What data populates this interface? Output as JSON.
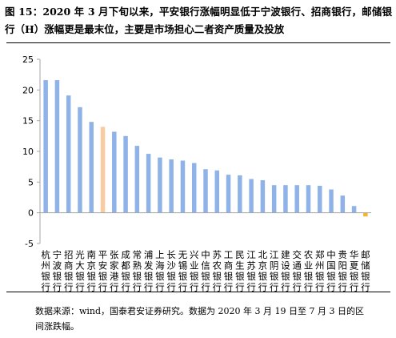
{
  "header": {
    "title": "图 15：2020 年 3 月下旬以来，平安银行涨幅明显低于宁波银行、招商银行，邮储银行（H）涨幅更是最末位，主要是市场担心二者资产质量及投放"
  },
  "footer": {
    "source": "数据来源：wind，国泰君安证券研究。数据为 2020 年 3 月 19 日至 7 月 3 日的区间涨跌幅。"
  },
  "chart_data": {
    "type": "bar",
    "title": "",
    "xlabel": "",
    "ylabel": "",
    "ylim": [
      -5,
      25
    ],
    "yticks": [
      -5,
      0,
      5,
      10,
      15,
      20,
      25
    ],
    "grid": false,
    "categories": [
      "杭州银行",
      "宁波银行",
      "招商银行",
      "光大银行",
      "南京银行",
      "平安银行",
      "张家港行",
      "成都银行",
      "常熟银行",
      "浦发银行",
      "上海银行",
      "长沙银行",
      "无锡银行",
      "兴业银行",
      "中信银行",
      "苏农银行",
      "工商银行",
      "民生银行",
      "江苏银行",
      "北京银行",
      "江阴银行",
      "建设银行",
      "交通银行",
      "农业银行",
      "郑州银行",
      "中国银行",
      "贵阳银行",
      "华夏银行",
      "邮储银行"
    ],
    "values": [
      21.6,
      21.6,
      19.1,
      17.2,
      14.8,
      14.0,
      13.2,
      12.5,
      10.9,
      9.6,
      9.0,
      8.7,
      8.5,
      8.1,
      7.1,
      6.9,
      6.2,
      6.1,
      5.5,
      5.3,
      4.5,
      4.5,
      4.5,
      4.5,
      4.4,
      3.8,
      2.8,
      1.1,
      -0.6
    ],
    "colors": {
      "default": "#8fb3e8",
      "highlight": "#f8cba0",
      "negative": "#f2b632",
      "axis": "#a6a6a6"
    },
    "highlight": [
      "平安银行"
    ]
  }
}
